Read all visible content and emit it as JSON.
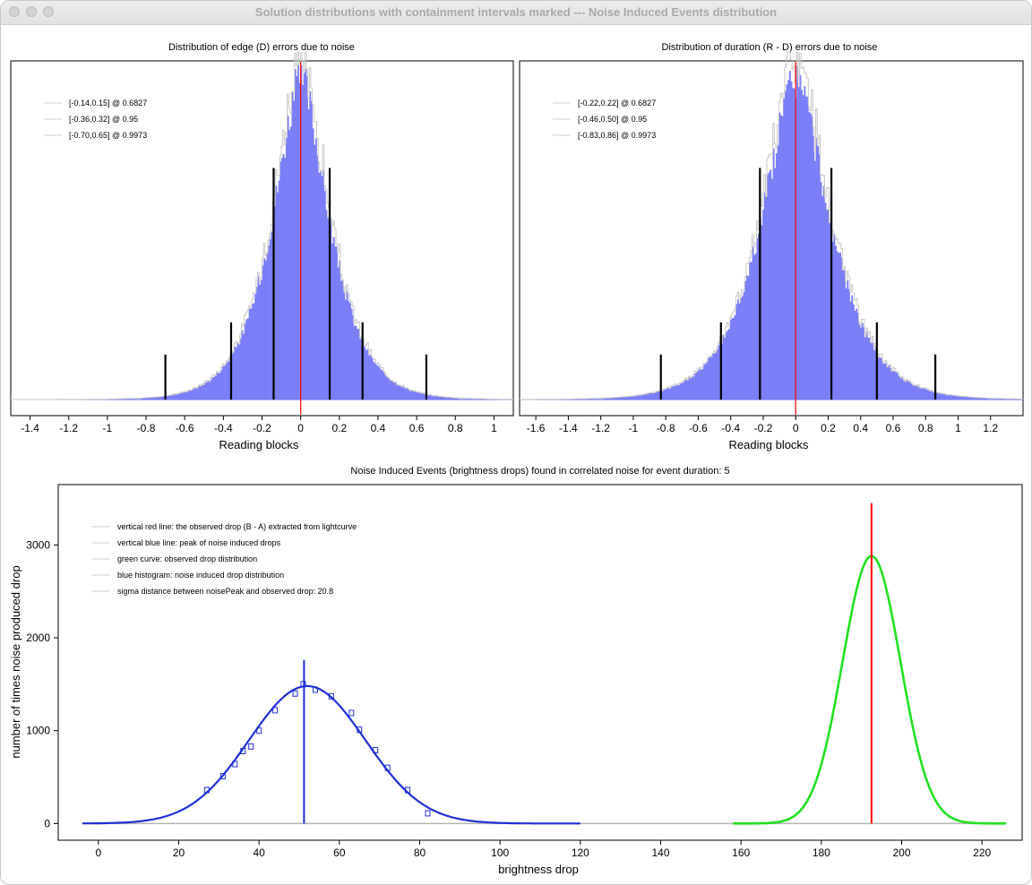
{
  "window": {
    "title": "Solution distributions with containment intervals marked --- Noise Induced Events distribution"
  },
  "colors": {
    "histogram_fill": "#7b7ef7",
    "histogram_outline": "#c8c8c8",
    "red_line": "#ff0000",
    "black_marker": "#000000",
    "blue_curve": "#1f2fd6",
    "green_curve": "#22e022"
  },
  "chart_data": [
    {
      "type": "bar",
      "title": "Distribution of edge (D) errors due to noise",
      "xlabel": "Reading blocks",
      "ylabel": "",
      "xlim": [
        -1.5,
        1.1
      ],
      "x_ticks": [
        -1.4,
        -1.2,
        -1,
        -0.8,
        -0.6,
        -0.4,
        -0.2,
        0,
        0.2,
        0.4,
        0.6,
        0.8,
        1
      ],
      "x_tick_labels": [
        "-1.4",
        "-1.2",
        "-1",
        "-0.8",
        "-0.6",
        "-0.4",
        "-0.2",
        "0",
        "0.2",
        "0.4",
        "0.6",
        "0.8",
        "1"
      ],
      "distribution": {
        "center": 0.0,
        "scale": 0.14,
        "shape": "laplace-like",
        "relative_peak": 1.0
      },
      "observed_line_x": 0,
      "containment_intervals": [
        {
          "label": "[-0.14,0.15] @ 0.6827",
          "low": -0.14,
          "high": 0.15,
          "marker_height": 0.72
        },
        {
          "label": "[-0.36,0.32] @ 0.95",
          "low": -0.36,
          "high": 0.32,
          "marker_height": 0.24
        },
        {
          "label": "[-0.70,0.65] @ 0.9973",
          "low": -0.7,
          "high": 0.65,
          "marker_height": 0.14
        }
      ],
      "grid": false,
      "legend_position": "top-left"
    },
    {
      "type": "bar",
      "title": "Distribution of duration (R - D) errors due to noise",
      "xlabel": "Reading blocks",
      "ylabel": "",
      "xlim": [
        -1.7,
        1.4
      ],
      "x_ticks": [
        -1.6,
        -1.4,
        -1.2,
        -1,
        -0.8,
        -0.6,
        -0.4,
        -0.2,
        0,
        0.2,
        0.4,
        0.6,
        0.8,
        1,
        1.2
      ],
      "x_tick_labels": [
        "-1.6",
        "-1.4",
        "-1.2",
        "-1",
        "-0.8",
        "-0.6",
        "-0.4",
        "-0.2",
        "0",
        "0.2",
        "0.4",
        "0.6",
        "0.8",
        "1",
        "1.2"
      ],
      "distribution": {
        "center": 0.0,
        "scale": 0.2,
        "shape": "laplace-like",
        "relative_peak": 1.0
      },
      "observed_line_x": 0,
      "containment_intervals": [
        {
          "label": "[-0.22,0.22] @ 0.6827",
          "low": -0.22,
          "high": 0.22,
          "marker_height": 0.72
        },
        {
          "label": "[-0.46,0.50] @ 0.95",
          "low": -0.46,
          "high": 0.5,
          "marker_height": 0.24
        },
        {
          "label": "[-0.83,0.86] @ 0.9973",
          "low": -0.83,
          "high": 0.86,
          "marker_height": 0.14
        }
      ],
      "grid": false,
      "legend_position": "top-left"
    },
    {
      "type": "line",
      "title": "Noise Induced Events (brightness drops) found in correlated noise for event duration: 5",
      "xlabel": "brightness drop",
      "ylabel": "number of times noise produced drop",
      "xlim": [
        -10,
        230
      ],
      "ylim": [
        -180,
        3650
      ],
      "x_ticks": [
        0,
        20,
        40,
        60,
        80,
        100,
        120,
        140,
        160,
        180,
        200,
        220
      ],
      "y_ticks": [
        0,
        1000,
        2000,
        3000
      ],
      "baseline_range": [
        -4,
        226
      ],
      "series": [
        {
          "name": "blue histogram: noise induced drop distribution",
          "kind": "gaussian",
          "mean": 52,
          "sigma": 14.5,
          "peak": 1480,
          "range": [
            -4,
            120
          ],
          "color": "#1f2fd6"
        },
        {
          "name": "green curve: observed drop distribution",
          "kind": "gaussian",
          "mean": 192.5,
          "sigma": 7.2,
          "peak": 2880,
          "range": [
            158,
            226
          ],
          "color": "#22e022"
        }
      ],
      "histogram_points": [
        {
          "x": 27,
          "y": 360
        },
        {
          "x": 31,
          "y": 510
        },
        {
          "x": 34,
          "y": 640
        },
        {
          "x": 36,
          "y": 780
        },
        {
          "x": 38,
          "y": 830
        },
        {
          "x": 40,
          "y": 1000
        },
        {
          "x": 44,
          "y": 1220
        },
        {
          "x": 49,
          "y": 1400
        },
        {
          "x": 51,
          "y": 1500
        },
        {
          "x": 54,
          "y": 1440
        },
        {
          "x": 58,
          "y": 1370
        },
        {
          "x": 63,
          "y": 1190
        },
        {
          "x": 65,
          "y": 1010
        },
        {
          "x": 69,
          "y": 790
        },
        {
          "x": 72,
          "y": 600
        },
        {
          "x": 77,
          "y": 360
        },
        {
          "x": 82,
          "y": 110
        }
      ],
      "vertical_lines": [
        {
          "x": 51.2,
          "y_top": 1760,
          "color": "#1f2fd6",
          "meaning": "peak of noise induced drops"
        },
        {
          "x": 192.5,
          "y_top": 3450,
          "color": "#ff0000",
          "meaning": "observed drop"
        }
      ],
      "legend": [
        "vertical red line: the observed drop (B - A) extracted from lightcurve",
        "vertical blue line: peak of noise induced drops",
        "green curve: observed drop distribution",
        "blue histogram: noise induced drop distribution",
        "sigma distance between noisePeak and observed drop: 20.8"
      ],
      "grid": false,
      "legend_position": "top-left"
    }
  ]
}
